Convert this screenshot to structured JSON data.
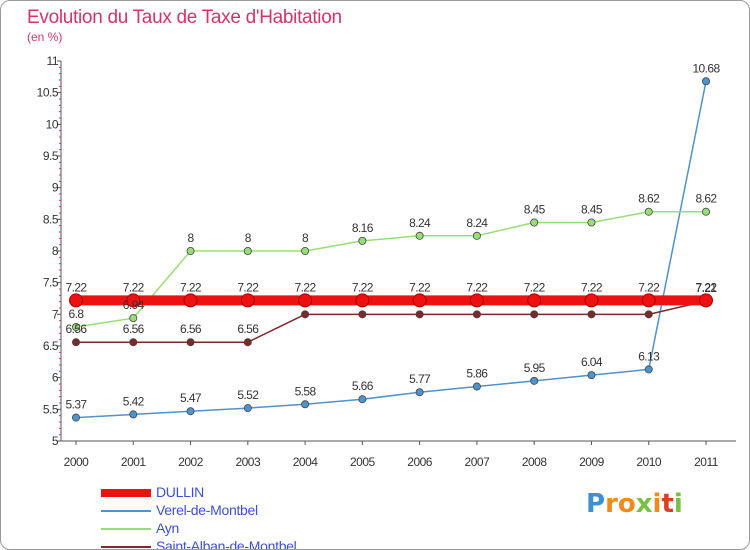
{
  "header": {
    "title": "Evolution du Taux de Taxe d'Habitation",
    "subtitle": "(en %)"
  },
  "chart_data": {
    "type": "line",
    "title": "Evolution du Taux de Taxe d'Habitation",
    "ylabel": "(en %)",
    "xlabel": "",
    "x": [
      "2000",
      "2001",
      "2002",
      "2003",
      "2004",
      "2005",
      "2006",
      "2007",
      "2008",
      "2009",
      "2010",
      "2011"
    ],
    "ylim": [
      5,
      11
    ],
    "yticks": [
      "5",
      "5.5",
      "6",
      "6.5",
      "7",
      "7.5",
      "8",
      "8.5",
      "9",
      "9.5",
      "10",
      "10.5",
      "11"
    ],
    "grid": false,
    "legend_position": "bottom-left",
    "series": [
      {
        "name": "DULLIN",
        "color": "#ee1111",
        "values": [
          7.22,
          7.22,
          7.22,
          7.22,
          7.22,
          7.22,
          7.22,
          7.22,
          7.22,
          7.22,
          7.22,
          7.22
        ],
        "labels": [
          "7.22",
          "7.22",
          "7.22",
          "7.22",
          "7.22",
          "7.22",
          "7.22",
          "7.22",
          "7.22",
          "7.22",
          "7.22",
          "7.22"
        ]
      },
      {
        "name": "Verel-de-Montbel",
        "color": "#4f92cc",
        "values": [
          5.37,
          5.42,
          5.47,
          5.52,
          5.58,
          5.66,
          5.77,
          5.86,
          5.95,
          6.04,
          6.13,
          10.68
        ],
        "labels": [
          "5.37",
          "5.42",
          "5.47",
          "5.52",
          "5.58",
          "5.66",
          "5.77",
          "5.86",
          "5.95",
          "6.04",
          "6.13",
          "10.68"
        ]
      },
      {
        "name": "Ayn",
        "color": "#99dd77",
        "values": [
          6.8,
          6.94,
          8,
          8,
          8,
          8.16,
          8.24,
          8.24,
          8.45,
          8.45,
          8.62,
          8.62
        ],
        "labels": [
          "6.8",
          "6.94",
          "8",
          "8",
          "8",
          "8.16",
          "8.24",
          "8.24",
          "8.45",
          "8.45",
          "8.62",
          "8.62"
        ]
      },
      {
        "name": "Saint-Alban-de-Montbel",
        "color": "#7a2a2a",
        "values": [
          6.56,
          6.56,
          6.56,
          6.56,
          7,
          7,
          7,
          7,
          7,
          7,
          7,
          7.21
        ],
        "labels": [
          "6.56",
          "6.56",
          "6.56",
          "6.56",
          "",
          "",
          "",
          "",
          "",
          "",
          "",
          "7.21"
        ]
      }
    ]
  },
  "logo": {
    "letters": [
      "P",
      "r",
      "o",
      "x",
      "i",
      "t",
      "i"
    ],
    "colors": [
      "#3d8fd6",
      "#f08a1c",
      "#f08a1c",
      "#7ac043",
      "#f08a1c",
      "#d9402b",
      "#7ac043"
    ]
  }
}
